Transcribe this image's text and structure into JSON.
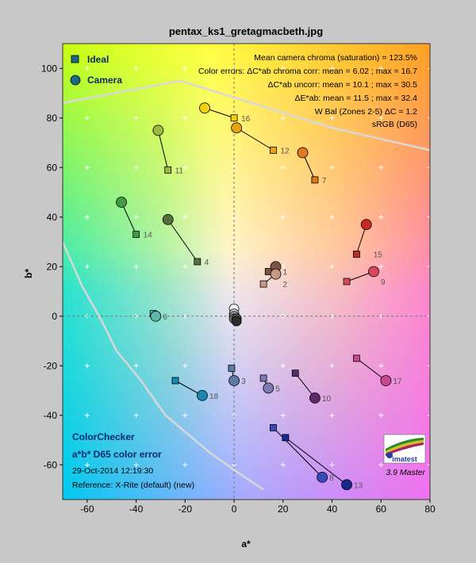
{
  "chart_data": {
    "type": "scatter",
    "title": "pentax_ks1_gretagmacbeth.jpg",
    "xlabel": "a*",
    "ylabel": "b*",
    "xlim": [
      -70,
      80
    ],
    "ylim": [
      -74,
      110
    ],
    "xticks": [
      -60,
      -40,
      -20,
      0,
      20,
      40,
      60,
      80
    ],
    "yticks": [
      -60,
      -40,
      -20,
      0,
      20,
      40,
      60,
      80,
      100
    ],
    "legend": {
      "position": "top-left",
      "ideal": "Ideal",
      "camera": "Camera"
    },
    "info_lines": [
      "Mean camera chroma (saturation) = 123.5%",
      "Color errors: ΔC*ab chroma corr:  mean = 6.02 ;  max = 16.7",
      "ΔC*ab uncorr:  mean = 10.1 ;  max = 30.5",
      "ΔE*ab:  mean = 11.5 ;  max = 32.4",
      "W Bal (Zones 2-5) ΔC = 1.2",
      "sRGB (D65)"
    ],
    "footer": {
      "line1": "ColorChecker",
      "line2": "a*b* D65 color error",
      "timestamp": "29-Oct-2014 12:19:30",
      "reference": "Reference: X-Rite (default) (new)"
    },
    "logo": {
      "text": "imatest",
      "version": "3.9  Master"
    },
    "gamut_upper": [
      [
        -70,
        86
      ],
      [
        -22,
        95
      ],
      [
        40,
        76
      ],
      [
        80,
        67
      ]
    ],
    "gamut_lower": [
      [
        -70,
        30
      ],
      [
        -62,
        12
      ],
      [
        -54,
        -2
      ],
      [
        -48,
        -14
      ],
      [
        -38,
        -26
      ],
      [
        -28,
        -40
      ],
      [
        -10,
        -55
      ],
      [
        0,
        -62
      ],
      [
        12,
        -70
      ]
    ],
    "series": [
      {
        "name": "Ideal",
        "marker": "square"
      },
      {
        "name": "Camera",
        "marker": "circle"
      }
    ],
    "patches": [
      {
        "id": "1",
        "ideal": [
          14,
          18
        ],
        "camera": [
          17,
          20
        ],
        "color": "#7a5444"
      },
      {
        "id": "2",
        "ideal": [
          12,
          13
        ],
        "camera": [
          17,
          17
        ],
        "color": "#c89a86"
      },
      {
        "id": "3",
        "ideal": [
          -1,
          -21
        ],
        "camera": [
          0,
          -26
        ],
        "color": "#5e7aa6"
      },
      {
        "id": "4",
        "ideal": [
          -15,
          22
        ],
        "camera": [
          -27,
          39
        ],
        "color": "#56703a"
      },
      {
        "id": "5",
        "ideal": [
          12,
          -25
        ],
        "camera": [
          14,
          -29
        ],
        "color": "#7c7cb4"
      },
      {
        "id": "6",
        "ideal": [
          -33,
          1
        ],
        "camera": [
          -32,
          0
        ],
        "color": "#5cb8a8"
      },
      {
        "id": "7",
        "ideal": [
          33,
          55
        ],
        "camera": [
          28,
          66
        ],
        "color": "#e07820"
      },
      {
        "id": "8",
        "ideal": [
          16,
          -45
        ],
        "camera": [
          36,
          -65
        ],
        "color": "#3a4ab8"
      },
      {
        "id": "9",
        "ideal": [
          46,
          14
        ],
        "camera": [
          57,
          18
        ],
        "color": "#d8485a"
      },
      {
        "id": "10",
        "ideal": [
          25,
          -23
        ],
        "camera": [
          33,
          -33
        ],
        "color": "#5a2a6a"
      },
      {
        "id": "11",
        "ideal": [
          -27,
          59
        ],
        "camera": [
          -31,
          75
        ],
        "color": "#a0b840"
      },
      {
        "id": "12",
        "ideal": [
          16,
          67
        ],
        "camera": [
          1,
          76
        ],
        "color": "#e8a410"
      },
      {
        "id": "13",
        "ideal": [
          21,
          -49
        ],
        "camera": [
          46,
          -68
        ],
        "color": "#1a2890"
      },
      {
        "id": "14",
        "ideal": [
          -40,
          33
        ],
        "camera": [
          -46,
          46
        ],
        "color": "#3f9d44"
      },
      {
        "id": "15",
        "ideal": [
          50,
          25
        ],
        "camera": [
          54,
          37
        ],
        "color": "#c82828"
      },
      {
        "id": "16",
        "ideal": [
          0,
          80
        ],
        "camera": [
          -12,
          84
        ],
        "color": "#f0d010"
      },
      {
        "id": "17",
        "ideal": [
          50,
          -17
        ],
        "camera": [
          62,
          -26
        ],
        "color": "#c84896"
      },
      {
        "id": "18",
        "ideal": [
          -24,
          -26
        ],
        "camera": [
          -13,
          -32
        ],
        "color": "#1a88b0"
      }
    ],
    "neutrals": [
      {
        "camera": [
          0,
          3
        ],
        "color": "#f4f4f4"
      },
      {
        "camera": [
          0,
          1
        ],
        "color": "#c8c8c8"
      },
      {
        "camera": [
          0,
          0
        ],
        "color": "#a0a0a0"
      },
      {
        "camera": [
          0,
          -1
        ],
        "color": "#787878"
      },
      {
        "camera": [
          1,
          -1
        ],
        "color": "#505050"
      },
      {
        "camera": [
          1,
          -2
        ],
        "color": "#2c2c2c"
      }
    ]
  }
}
